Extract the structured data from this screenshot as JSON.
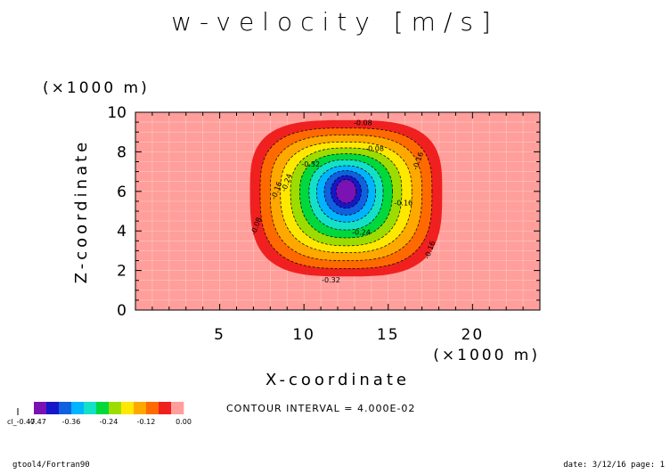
{
  "title": "w-velocity [m/s]",
  "footer": {
    "left": "gtool4/Fortran90",
    "right": "date: 3/12/16 page: 1"
  },
  "colors": {
    "levels": [
      "#7a12b4",
      "#1418c8",
      "#1060e0",
      "#00b4ff",
      "#14e0c8",
      "#00d83c",
      "#9cdc00",
      "#ffe800",
      "#ffa800",
      "#ff6a00",
      "#f02020",
      "#ff9e9a"
    ]
  },
  "chart_data": {
    "type": "filled_contour",
    "title": "w-velocity [m/s]",
    "xlabel": "X-coordinate",
    "ylabel": "Z-coordinate",
    "xscale_label": "(×1000 m)",
    "yscale_label": "(×1000 m)",
    "xlim": [
      0,
      24
    ],
    "ylim": [
      0,
      10
    ],
    "xticks": [
      5,
      10,
      15,
      20
    ],
    "yticks": [
      0,
      2,
      4,
      6,
      8,
      10
    ],
    "center": {
      "x": 12.5,
      "z": 6.0
    },
    "min_value": -0.47,
    "contour_interval_text": "CONTOUR INTERVAL = 4.000E-02",
    "contour_interval": 0.04,
    "contour_labels": [
      "-0.08",
      "-0.16",
      "-0.24",
      "-0.32",
      "-0.16",
      "-0.08",
      "-0.16",
      "-0.24",
      "-0.32",
      "-0.16",
      "-0.08"
    ],
    "colorbar": {
      "tick_labels": [
        "-0.47",
        "-0.36",
        "-0.24",
        "-0.12",
        "0.00"
      ],
      "left_label": "cl_-0.47"
    }
  }
}
